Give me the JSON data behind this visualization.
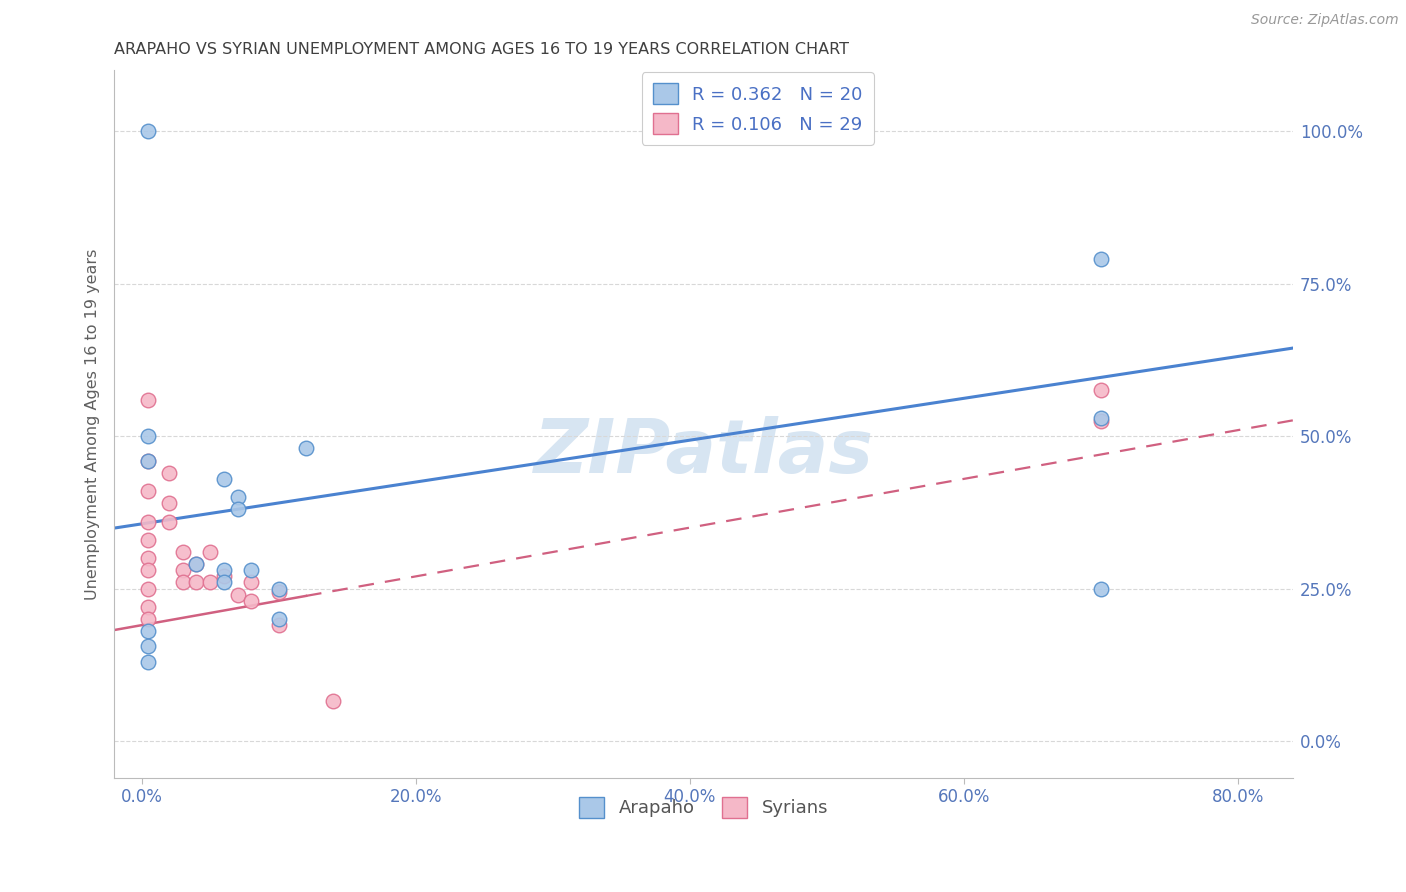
{
  "title": "ARAPAHO VS SYRIAN UNEMPLOYMENT AMONG AGES 16 TO 19 YEARS CORRELATION CHART",
  "source": "Source: ZipAtlas.com",
  "xlabel_ticks": [
    "0.0%",
    "20.0%",
    "40.0%",
    "60.0%",
    "80.0%"
  ],
  "xlabel_tick_vals": [
    0.0,
    0.2,
    0.4,
    0.6,
    0.8
  ],
  "ylabel": "Unemployment Among Ages 16 to 19 years",
  "ylabel_ticks": [
    "0.0%",
    "25.0%",
    "50.0%",
    "75.0%",
    "100.0%"
  ],
  "ylabel_tick_vals": [
    0.0,
    0.25,
    0.5,
    0.75,
    1.0
  ],
  "xlim": [
    -0.02,
    0.84
  ],
  "ylim": [
    -0.06,
    1.1
  ],
  "arapaho_x": [
    0.005,
    0.38,
    0.005,
    0.12,
    0.005,
    0.06,
    0.07,
    0.07,
    0.04,
    0.06,
    0.08,
    0.06,
    0.1,
    0.1,
    0.7,
    0.7,
    0.7,
    0.005,
    0.005,
    0.005
  ],
  "arapaho_y": [
    1.0,
    1.0,
    0.5,
    0.48,
    0.46,
    0.43,
    0.4,
    0.38,
    0.29,
    0.28,
    0.28,
    0.26,
    0.25,
    0.2,
    0.79,
    0.53,
    0.25,
    0.18,
    0.155,
    0.13
  ],
  "syrian_x": [
    0.005,
    0.005,
    0.005,
    0.005,
    0.005,
    0.005,
    0.005,
    0.005,
    0.005,
    0.005,
    0.02,
    0.02,
    0.02,
    0.03,
    0.03,
    0.03,
    0.04,
    0.04,
    0.05,
    0.05,
    0.06,
    0.07,
    0.08,
    0.08,
    0.1,
    0.1,
    0.7,
    0.7,
    0.14
  ],
  "syrian_y": [
    0.56,
    0.46,
    0.41,
    0.36,
    0.33,
    0.3,
    0.28,
    0.25,
    0.22,
    0.2,
    0.44,
    0.39,
    0.36,
    0.31,
    0.28,
    0.26,
    0.29,
    0.26,
    0.31,
    0.26,
    0.27,
    0.24,
    0.26,
    0.23,
    0.245,
    0.19,
    0.575,
    0.525,
    0.065
  ],
  "arapaho_color": "#aac8e8",
  "syrian_color": "#f5b8c8",
  "arapaho_edge_color": "#5590cc",
  "syrian_edge_color": "#e07090",
  "arapaho_line_color": "#4a82d0",
  "syrian_line_color": "#d06080",
  "legend_arapaho_R": "0.362",
  "legend_arapaho_N": "20",
  "legend_syrian_R": "0.106",
  "legend_syrian_N": "29",
  "legend_text_color": "#4a70c4",
  "watermark": "ZIPatlas",
  "marker_size": 110,
  "grid_color": "#d8d8d8",
  "background_color": "#ffffff",
  "title_color": "#404040",
  "source_color": "#999999",
  "ylabel_color": "#606060",
  "tick_label_color": "#5577bb"
}
